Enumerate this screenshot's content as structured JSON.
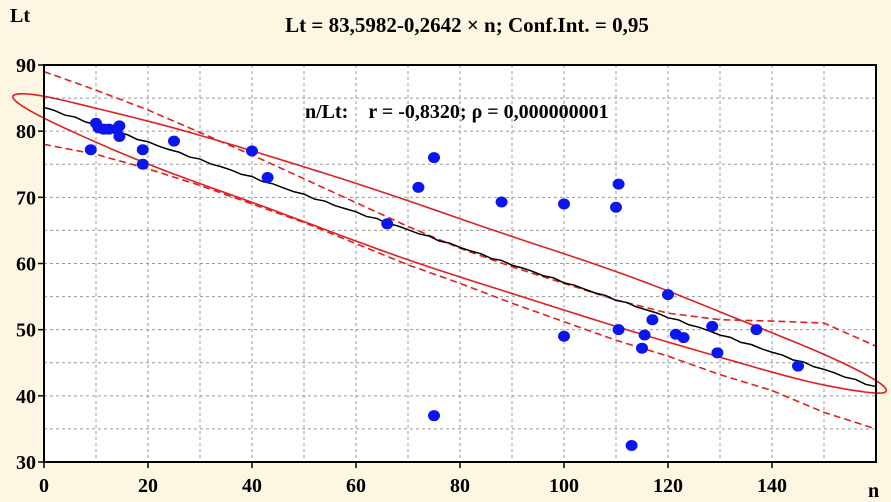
{
  "chart_data": {
    "type": "scatter",
    "title": "Lt = 83,5982-0,2642 × n; Conf.Int. = 0,95",
    "xlabel": "n",
    "ylabel": "Lt",
    "annotation": "n/Lt:    r = -0,8320; ρ = 0,000000001",
    "xlim": [
      0,
      160
    ],
    "ylim": [
      30,
      90
    ],
    "xticks": [
      {
        "value": 0,
        "label": "0"
      },
      {
        "value": 20,
        "label": "20"
      },
      {
        "value": 40,
        "label": "40"
      },
      {
        "value": 60,
        "label": "60"
      },
      {
        "value": 80,
        "label": "80"
      },
      {
        "value": 100,
        "label": "100"
      },
      {
        "value": 120,
        "label": "120"
      },
      {
        "value": 140,
        "label": "140"
      }
    ],
    "yticks": [
      {
        "value": 30,
        "label": "30"
      },
      {
        "value": 40,
        "label": "40"
      },
      {
        "value": 50,
        "label": "50"
      },
      {
        "value": 60,
        "label": "60"
      },
      {
        "value": 70,
        "label": "70"
      },
      {
        "value": 80,
        "label": "80"
      },
      {
        "value": 90,
        "label": "90"
      }
    ],
    "grid": true,
    "regression": {
      "intercept": 83.5982,
      "slope": -0.2642
    },
    "points": [
      [
        9,
        77.2
      ],
      [
        10,
        81.2
      ],
      [
        10.5,
        80.5
      ],
      [
        11.5,
        80.3
      ],
      [
        12.5,
        80.3
      ],
      [
        14,
        80.3
      ],
      [
        14.5,
        80.8
      ],
      [
        14.5,
        79.2
      ],
      [
        19,
        77.2
      ],
      [
        19,
        75
      ],
      [
        25,
        78.5
      ],
      [
        40,
        77
      ],
      [
        43,
        73
      ],
      [
        66,
        66
      ],
      [
        72,
        71.5
      ],
      [
        75,
        76
      ],
      [
        75,
        37
      ],
      [
        88,
        69.3
      ],
      [
        100,
        69
      ],
      [
        100,
        49
      ],
      [
        110,
        68.5
      ],
      [
        110.5,
        72
      ],
      [
        110.5,
        50
      ],
      [
        113,
        32.5
      ],
      [
        115,
        47.2
      ],
      [
        115.5,
        49.2
      ],
      [
        117,
        51.5
      ],
      [
        120,
        55.3
      ],
      [
        121.5,
        49.3
      ],
      [
        123,
        48.8
      ],
      [
        128.5,
        50.5
      ],
      [
        129.5,
        46.5
      ],
      [
        137,
        50
      ],
      [
        145,
        44.5
      ]
    ],
    "confidence_band": {
      "x": [
        0,
        10,
        20,
        30,
        40,
        50,
        60,
        70,
        80,
        90,
        100,
        110,
        120,
        130,
        140,
        150,
        160
      ],
      "upper": [
        89,
        86.2,
        83.2,
        79.8,
        76.4,
        72.8,
        69.2,
        65.6,
        62.3,
        59.5,
        57,
        54.5,
        52.5,
        51.5,
        51.3,
        51,
        47.5
      ],
      "lower": [
        78,
        76.5,
        74.3,
        71.8,
        69,
        66.2,
        63,
        59.8,
        57,
        54,
        51.2,
        48.4,
        46,
        43.2,
        40.8,
        37.5,
        35
      ]
    },
    "ellipse": {
      "cx": 78,
      "cy": 63,
      "a": 84,
      "b": 4.4,
      "angle": -0.2642
    }
  }
}
